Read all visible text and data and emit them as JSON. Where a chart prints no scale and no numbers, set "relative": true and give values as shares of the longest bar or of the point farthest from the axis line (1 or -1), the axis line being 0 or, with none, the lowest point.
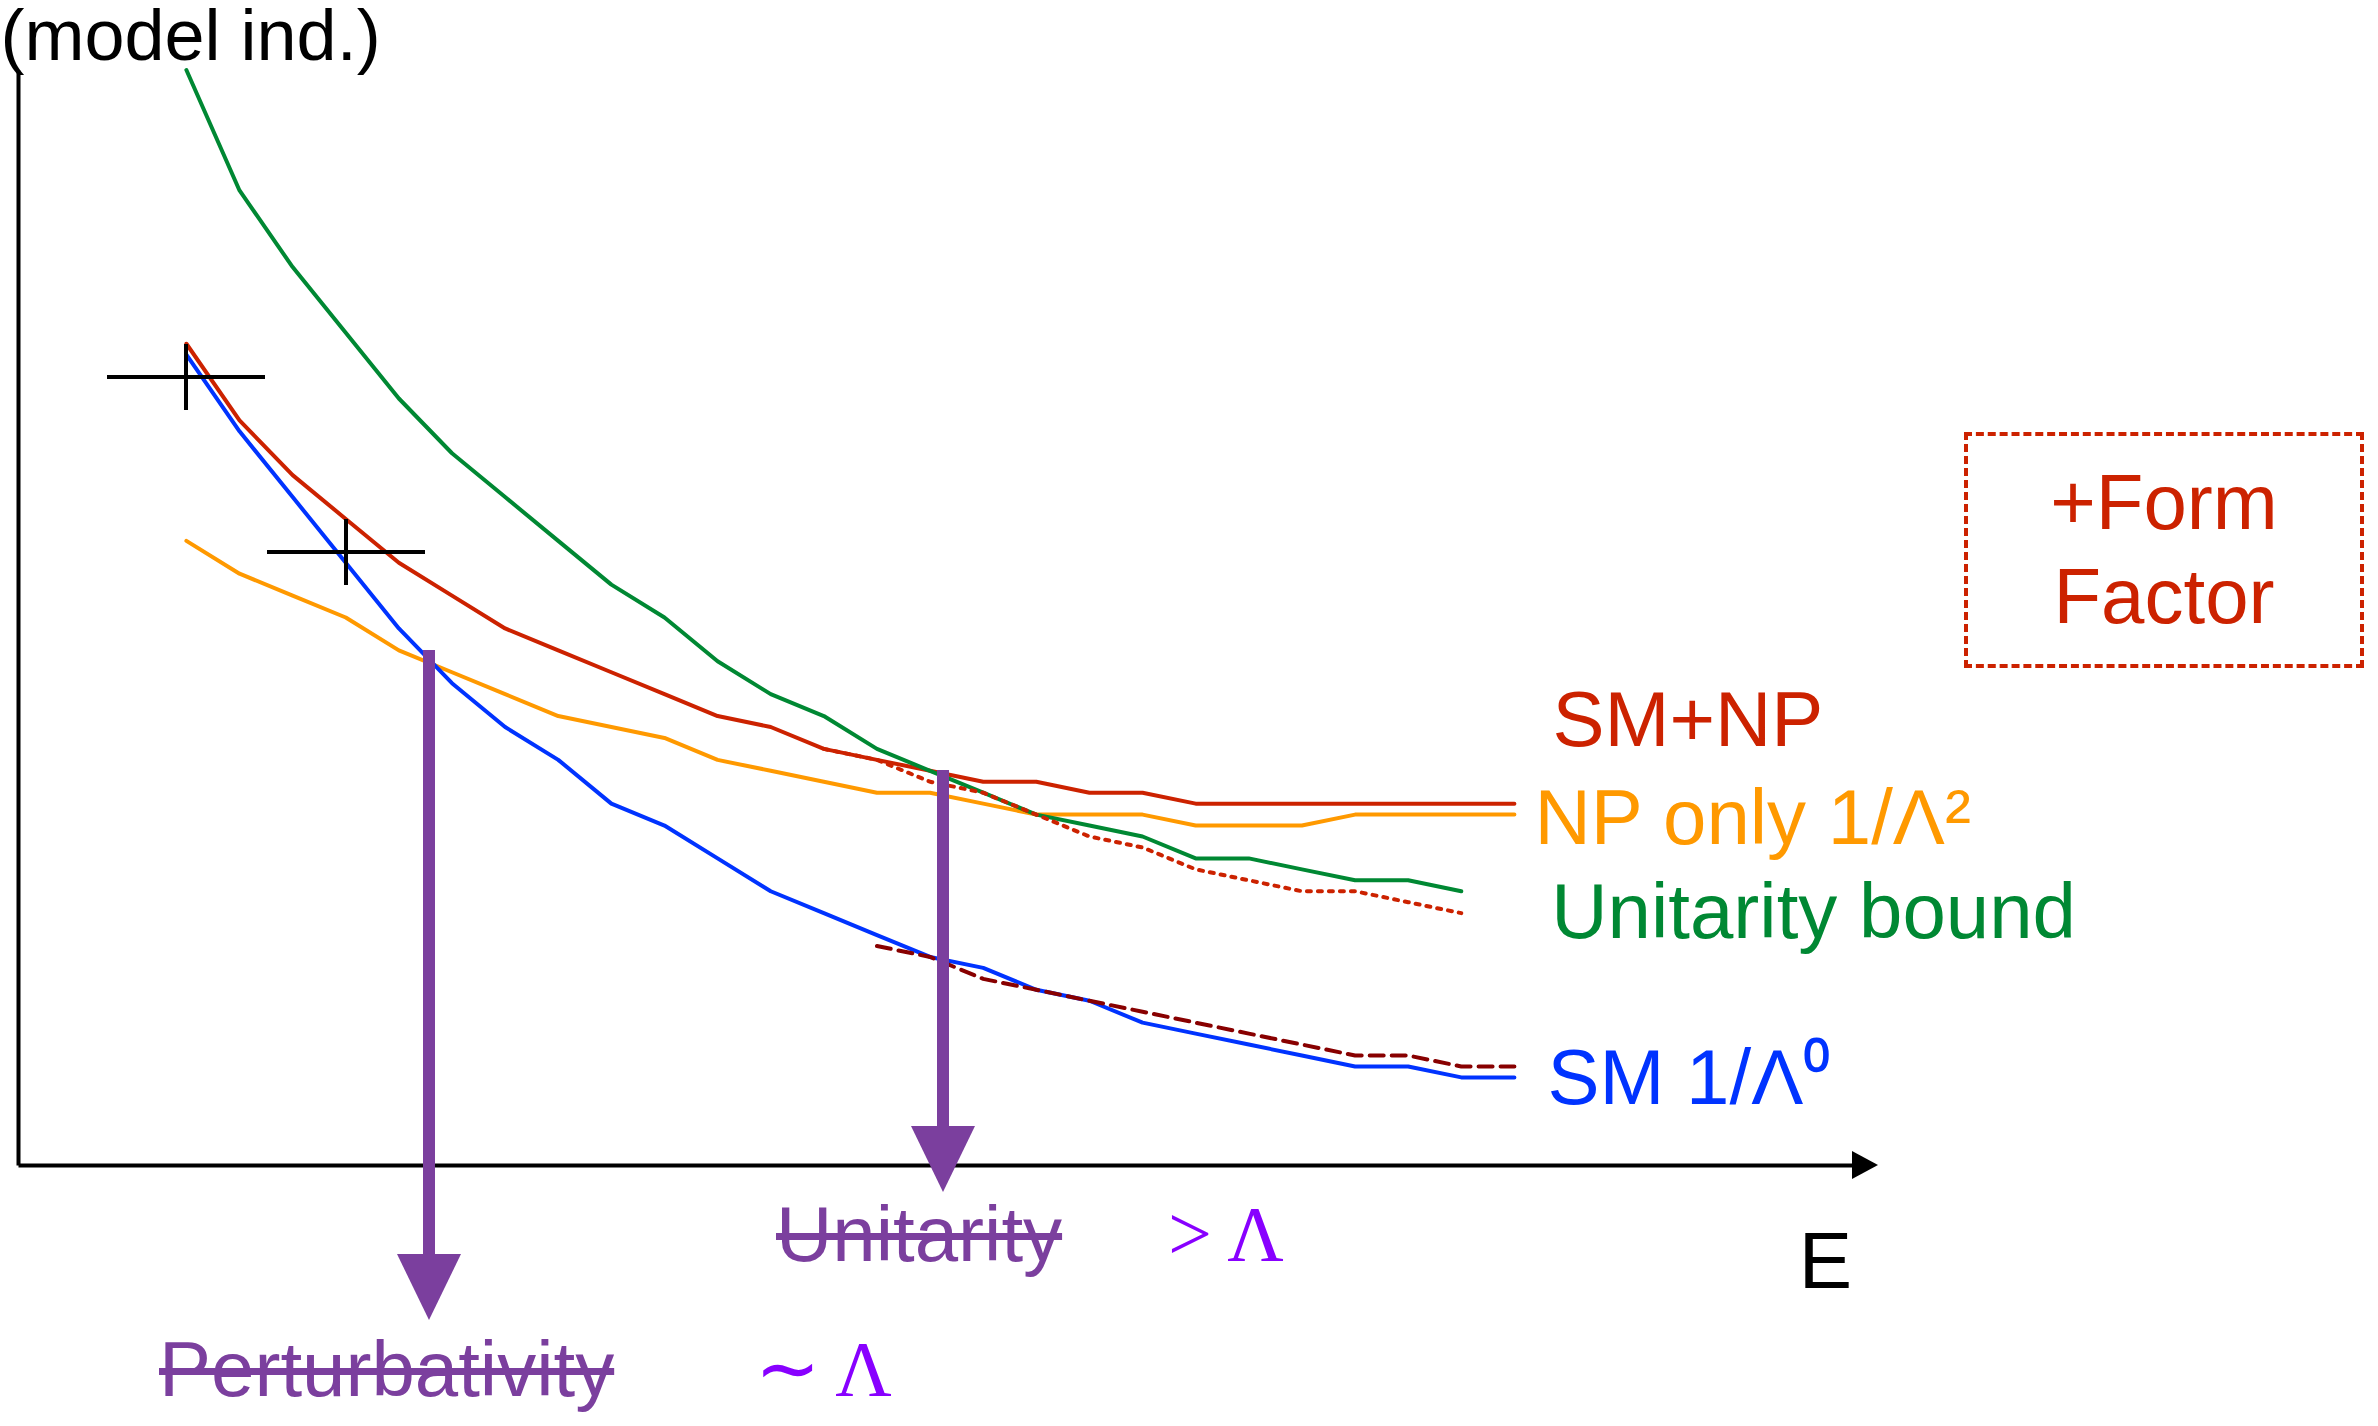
{
  "chart_data": {
    "type": "line",
    "relative": true,
    "xlabel": "E",
    "ylabel": "(model ind.)",
    "categories": [
      null,
      null,
      null,
      null,
      null,
      null,
      null,
      null,
      null,
      null,
      null,
      null,
      null,
      null,
      null,
      null,
      null,
      null,
      null,
      null,
      null,
      null,
      null,
      null,
      null,
      null
    ],
    "series": [
      {
        "name": "SM+NP",
        "color": "#cc2200",
        "values": [
          0.75,
          0.68,
          0.63,
          0.59,
          0.55,
          0.52,
          0.49,
          0.47,
          0.45,
          0.43,
          0.41,
          0.4,
          0.38,
          0.37,
          0.36,
          0.35,
          0.35,
          0.34,
          0.34,
          0.33,
          0.33,
          0.33,
          0.33,
          0.33,
          0.33,
          0.33
        ]
      },
      {
        "name": "NP only  1/Λ²",
        "color": "#ff9900",
        "values": [
          0.57,
          0.54,
          0.52,
          0.5,
          0.47,
          0.45,
          0.43,
          0.41,
          0.4,
          0.39,
          0.37,
          0.36,
          0.35,
          0.34,
          0.34,
          0.33,
          0.32,
          0.32,
          0.32,
          0.31,
          0.31,
          0.31,
          0.32,
          0.32,
          0.32,
          0.32
        ]
      },
      {
        "name": "Unitarity bound",
        "color": "#008833",
        "values": [
          1.0,
          0.89,
          0.82,
          0.76,
          0.7,
          0.65,
          0.61,
          0.57,
          0.53,
          0.5,
          0.46,
          0.43,
          0.41,
          0.38,
          0.36,
          0.34,
          0.32,
          0.31,
          0.3,
          0.28,
          0.28,
          0.27,
          0.26,
          0.26,
          0.25,
          null
        ]
      },
      {
        "name": "SM   1/Λ⁰",
        "color": "#0033ff",
        "values": [
          0.74,
          0.67,
          0.61,
          0.55,
          0.49,
          0.44,
          0.4,
          0.37,
          0.33,
          0.31,
          0.28,
          0.25,
          0.23,
          0.21,
          0.19,
          0.18,
          0.16,
          0.15,
          0.13,
          0.12,
          0.11,
          0.1,
          0.09,
          0.09,
          0.08,
          0.08
        ]
      },
      {
        "color": "#cc2200",
        "line_style": "dotted",
        "values": [
          null,
          null,
          null,
          null,
          null,
          null,
          null,
          null,
          null,
          null,
          null,
          null,
          0.38,
          0.37,
          0.35,
          0.34,
          0.32,
          0.3,
          0.29,
          0.27,
          0.26,
          0.25,
          0.25,
          0.24,
          0.23,
          null
        ]
      },
      {
        "color": "#880000",
        "line_style": "dashed",
        "values": [
          null,
          null,
          null,
          null,
          null,
          null,
          null,
          null,
          null,
          null,
          null,
          null,
          null,
          0.2,
          0.19,
          0.17,
          0.16,
          0.15,
          0.14,
          0.13,
          0.12,
          0.11,
          0.1,
          0.1,
          0.09,
          0.09
        ]
      }
    ],
    "annotations": [
      "+Form Factor",
      "Unitarity",
      "> Λ",
      "Perturbativity",
      "∼ Λ"
    ]
  }
}
